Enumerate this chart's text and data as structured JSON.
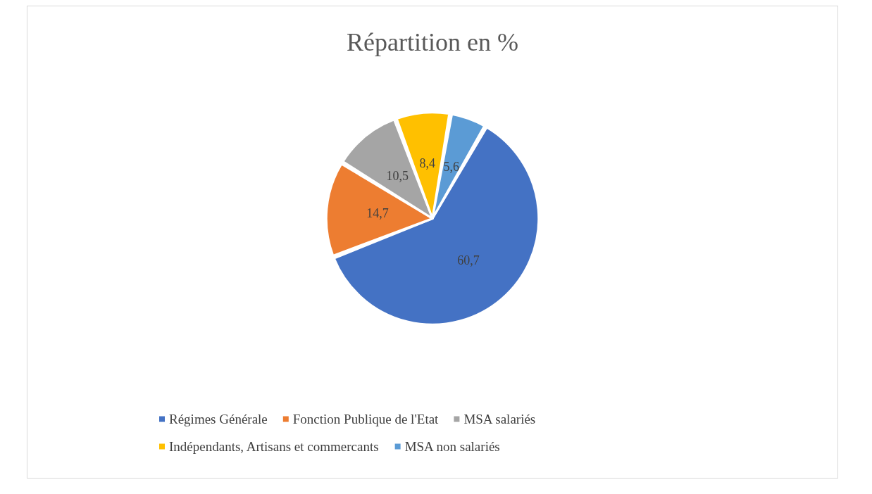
{
  "chart_data": {
    "type": "pie",
    "title": "Répartition en %",
    "categories": [
      "Régimes Générale",
      "Fonction Publique de l'Etat",
      "MSA salariés",
      "Indépendants, Artisans et commercants",
      "MSA non salariés"
    ],
    "values": [
      60.7,
      14.7,
      10.5,
      8.4,
      5.6
    ],
    "colors": [
      "#4472c4",
      "#ed7d31",
      "#a5a5a5",
      "#ffc000",
      "#5b9bd5"
    ],
    "value_labels": [
      "60,7",
      "14,7",
      "10,5",
      "8,4",
      "5,6"
    ],
    "legend": "bottom"
  }
}
